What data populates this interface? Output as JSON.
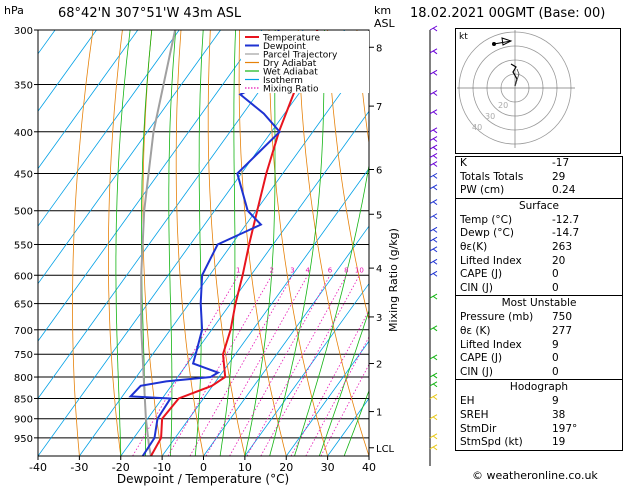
{
  "header": {
    "hpa_label": "hPa",
    "location": "68°42'N 307°51'W 43m ASL",
    "km_label": "km",
    "asl_label": "ASL",
    "datetime": "18.02.2021 00GMT (Base: 00)"
  },
  "chart_data": {
    "type": "line",
    "title": "",
    "xlabel": "Dewpoint / Temperature (°C)",
    "ylabel": "hPa",
    "right_label": "Mixing Ratio (g/kg)",
    "x_ticks": [
      -40,
      -30,
      -20,
      -10,
      0,
      10,
      20,
      30,
      40
    ],
    "x_tick_labels": [
      "-40",
      "-30",
      "-20",
      "-10",
      "0",
      "10",
      "20",
      "30",
      "40"
    ],
    "xlim": [
      -40,
      40
    ],
    "pressure_levels": [
      300,
      350,
      400,
      450,
      500,
      550,
      600,
      650,
      700,
      750,
      800,
      850,
      900,
      950
    ],
    "pressure_labels": [
      "300",
      "350",
      "400",
      "450",
      "500",
      "550",
      "600",
      "650",
      "700",
      "750",
      "800",
      "850",
      "900",
      "950"
    ],
    "ylim_hpa": [
      1000,
      300
    ],
    "km_ticks": [
      {
        "label": "8",
        "p": 315
      },
      {
        "label": "7",
        "p": 372
      },
      {
        "label": "6",
        "p": 445
      },
      {
        "label": "5",
        "p": 505
      },
      {
        "label": "4",
        "p": 588
      },
      {
        "label": "3",
        "p": 675
      },
      {
        "label": "2",
        "p": 770
      },
      {
        "label": "1",
        "p": 882
      },
      {
        "label": "LCL",
        "p": 977
      }
    ],
    "mixing_ratio_labels": [
      "1",
      "2",
      "3",
      "4",
      "6",
      "8",
      "10",
      "16",
      "20",
      "25"
    ],
    "mixing_ratio_values": [
      1,
      2,
      3,
      4,
      6,
      8,
      10,
      16,
      20,
      25
    ],
    "legend": [
      "Temperature",
      "Dewpoint",
      "Parcel Trajectory",
      "Dry Adiabat",
      "Wet Adiabat",
      "Isotherm",
      "Mixing Ratio"
    ],
    "legend_colors": [
      "#e8141e",
      "#1e32d2",
      "#a0a0a0",
      "#e6820a",
      "#14b414",
      "#00a0e6",
      "#e614b4"
    ],
    "temperature": [
      {
        "p": 1000,
        "t": -12.7
      },
      {
        "p": 950,
        "t": -13.4
      },
      {
        "p": 900,
        "t": -16.5
      },
      {
        "p": 850,
        "t": -16.0
      },
      {
        "p": 820,
        "t": -10.2
      },
      {
        "p": 800,
        "t": -8.5
      },
      {
        "p": 750,
        "t": -13.0
      },
      {
        "p": 700,
        "t": -15.4
      },
      {
        "p": 650,
        "t": -18.8
      },
      {
        "p": 600,
        "t": -22.0
      },
      {
        "p": 550,
        "t": -25.8
      },
      {
        "p": 500,
        "t": -29.7
      },
      {
        "p": 450,
        "t": -34.0
      },
      {
        "p": 400,
        "t": -38.2
      },
      {
        "p": 350,
        "t": -42.0
      },
      {
        "p": 300,
        "t": -46.6
      }
    ],
    "dewpoint": [
      {
        "p": 1000,
        "t": -14.7
      },
      {
        "p": 950,
        "t": -15.0
      },
      {
        "p": 900,
        "t": -17.6
      },
      {
        "p": 850,
        "t": -18.0
      },
      {
        "p": 845,
        "t": -28.0
      },
      {
        "p": 820,
        "t": -27.4
      },
      {
        "p": 810,
        "t": -22.0
      },
      {
        "p": 800,
        "t": -12.0
      },
      {
        "p": 790,
        "t": -11.0
      },
      {
        "p": 770,
        "t": -18.6
      },
      {
        "p": 750,
        "t": -19.6
      },
      {
        "p": 700,
        "t": -22.3
      },
      {
        "p": 650,
        "t": -27.2
      },
      {
        "p": 600,
        "t": -31.8
      },
      {
        "p": 550,
        "t": -33.4
      },
      {
        "p": 520,
        "t": -26.4
      },
      {
        "p": 500,
        "t": -32.0
      },
      {
        "p": 450,
        "t": -41.0
      },
      {
        "p": 400,
        "t": -38.0
      },
      {
        "p": 380,
        "t": -45.0
      },
      {
        "p": 360,
        "t": -54.0
      },
      {
        "p": 340,
        "t": -48.0
      },
      {
        "p": 300,
        "t": -56.0
      }
    ],
    "parcel": [
      {
        "p": 1000,
        "t": -12.7
      },
      {
        "p": 975,
        "t": -14.7
      },
      {
        "p": 900,
        "t": -20.4
      },
      {
        "p": 800,
        "t": -28.2
      },
      {
        "p": 700,
        "t": -37.0
      },
      {
        "p": 600,
        "t": -46.5
      },
      {
        "p": 500,
        "t": -57.0
      },
      {
        "p": 400,
        "t": -68.5
      },
      {
        "p": 300,
        "t": -81.0
      }
    ]
  },
  "hodograph": {
    "unit_label": "kt",
    "ring_labels": [
      "20",
      "30",
      "40"
    ]
  },
  "indices": {
    "basic": [
      {
        "label": "K",
        "value": "-17"
      },
      {
        "label": "Totals Totals",
        "value": "29"
      },
      {
        "label": "PW (cm)",
        "value": "0.24"
      }
    ],
    "surface_title": "Surface",
    "surface": [
      {
        "label": "Temp (°C)",
        "value": "-12.7"
      },
      {
        "label": "Dewp (°C)",
        "value": "-14.7"
      },
      {
        "label": "θε(K)",
        "value": "263"
      },
      {
        "label": "Lifted Index",
        "value": "20"
      },
      {
        "label": "CAPE (J)",
        "value": "0"
      },
      {
        "label": "CIN (J)",
        "value": "0"
      }
    ],
    "unstable_title": "Most Unstable",
    "unstable": [
      {
        "label": "Pressure (mb)",
        "value": "750"
      },
      {
        "label": "θε (K)",
        "value": "277"
      },
      {
        "label": "Lifted Index",
        "value": "9"
      },
      {
        "label": "CAPE (J)",
        "value": "0"
      },
      {
        "label": "CIN (J)",
        "value": "0"
      }
    ],
    "hodo_title": "Hodograph",
    "hodo": [
      {
        "label": "EH",
        "value": "9"
      },
      {
        "label": "SREH",
        "value": "38"
      },
      {
        "label": "StmDir",
        "value": "197°"
      },
      {
        "label": "StmSpd (kt)",
        "value": "19"
      }
    ]
  },
  "footer": {
    "copyright": "© weatheronline.co.uk"
  }
}
